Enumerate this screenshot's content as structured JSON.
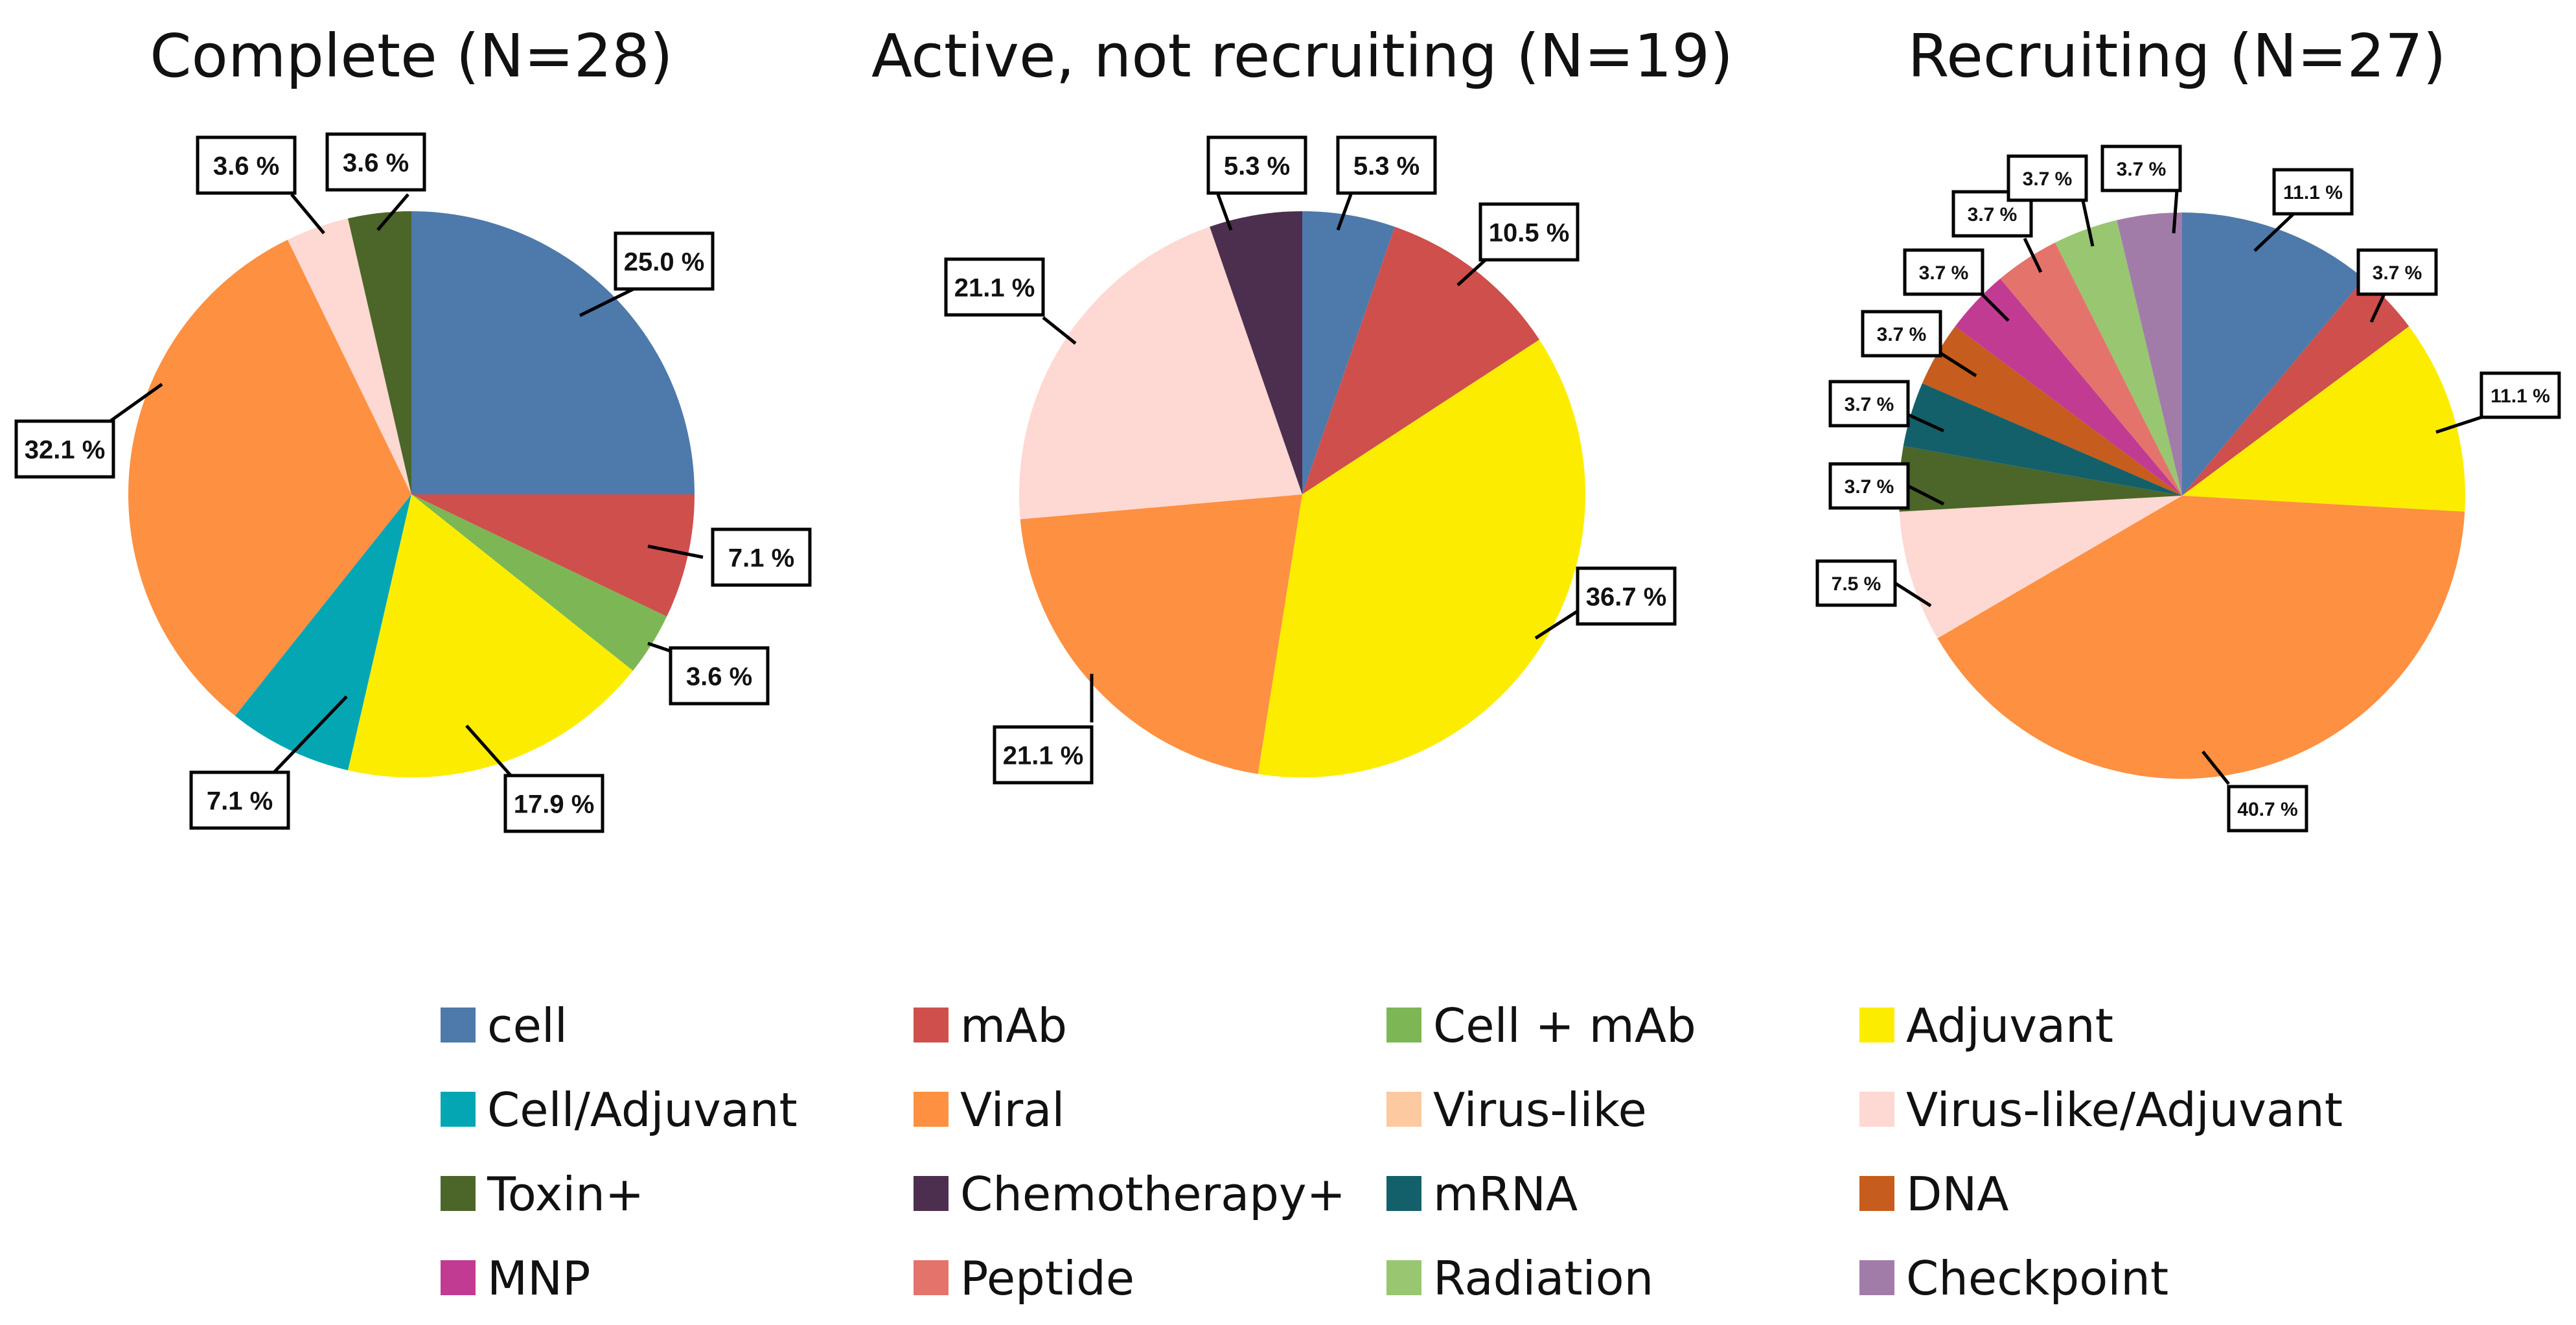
{
  "chart_data": [
    {
      "type": "pie",
      "title": "Complete (N=28)",
      "slices": [
        {
          "category": "cell",
          "value": 25.0,
          "label": "25.0 %"
        },
        {
          "category": "mAb",
          "value": 7.1,
          "label": "7.1 %"
        },
        {
          "category": "Cell + mAb",
          "value": 3.6,
          "label": "3.6 %"
        },
        {
          "category": "Adjuvant",
          "value": 17.9,
          "label": "17.9 %"
        },
        {
          "category": "Cell/Adjuvant",
          "value": 7.1,
          "label": "7.1 %"
        },
        {
          "category": "Viral",
          "value": 32.1,
          "label": "32.1 %"
        },
        {
          "category": "Virus-like/Adjuvant",
          "value": 3.6,
          "label": "3.6 %"
        },
        {
          "category": "Toxin+",
          "value": 3.6,
          "label": "3.6 %"
        }
      ]
    },
    {
      "type": "pie",
      "title": "Active, not recruiting (N=19)",
      "slices": [
        {
          "category": "cell",
          "value": 5.3,
          "label": "5.3 %"
        },
        {
          "category": "mAb",
          "value": 10.5,
          "label": "10.5 %"
        },
        {
          "category": "Adjuvant",
          "value": 36.7,
          "label": "36.7 %"
        },
        {
          "category": "Viral",
          "value": 21.1,
          "label": "21.1 %"
        },
        {
          "category": "Virus-like/Adjuvant",
          "value": 21.1,
          "label": "21.1 %"
        },
        {
          "category": "Chemotherapy+",
          "value": 5.3,
          "label": "5.3 %"
        }
      ]
    },
    {
      "type": "pie",
      "title": "Recruiting (N=27)",
      "slices": [
        {
          "category": "cell",
          "value": 11.1,
          "label": "11.1 %"
        },
        {
          "category": "mAb",
          "value": 3.7,
          "label": "3.7 %"
        },
        {
          "category": "Adjuvant",
          "value": 11.1,
          "label": "11.1 %"
        },
        {
          "category": "Viral",
          "value": 40.7,
          "label": "40.7 %"
        },
        {
          "category": "Virus-like/Adjuvant",
          "value": 7.5,
          "label": "7.5 %"
        },
        {
          "category": "Toxin+",
          "value": 3.7,
          "label": "3.7 %"
        },
        {
          "category": "mRNA",
          "value": 3.7,
          "label": "3.7 %"
        },
        {
          "category": "DNA",
          "value": 3.7,
          "label": "3.7 %"
        },
        {
          "category": "MNP",
          "value": 3.7,
          "label": "3.7 %"
        },
        {
          "category": "Peptide",
          "value": 3.7,
          "label": "3.7 %"
        },
        {
          "category": "Radiation",
          "value": 3.7,
          "label": "3.7 %"
        },
        {
          "category": "Checkpoint",
          "value": 3.7,
          "label": "3.7 %"
        }
      ]
    }
  ],
  "legend": [
    {
      "name": "cell",
      "color": "#4e79ab"
    },
    {
      "name": "mAb",
      "color": "#cf4f4c"
    },
    {
      "name": "Cell + mAb",
      "color": "#7db655"
    },
    {
      "name": "Adjuvant",
      "color": "#fced00"
    },
    {
      "name": "Cell/Adjuvant",
      "color": "#04a6b4"
    },
    {
      "name": "Viral",
      "color": "#fd9041"
    },
    {
      "name": "Virus-like",
      "color": "#fcc9a0"
    },
    {
      "name": "Virus-like/Adjuvant",
      "color": "#fed8d2"
    },
    {
      "name": "Toxin+",
      "color": "#4b6628"
    },
    {
      "name": "Chemotherapy+",
      "color": "#4c2f4e"
    },
    {
      "name": "mRNA",
      "color": "#14606a"
    },
    {
      "name": "DNA",
      "color": "#c65c1d"
    },
    {
      "name": "MNP",
      "color": "#c23b92"
    },
    {
      "name": "Peptide",
      "color": "#e4736c"
    },
    {
      "name": "Radiation",
      "color": "#98c671"
    },
    {
      "name": "Checkpoint",
      "color": "#a27ca9"
    }
  ]
}
